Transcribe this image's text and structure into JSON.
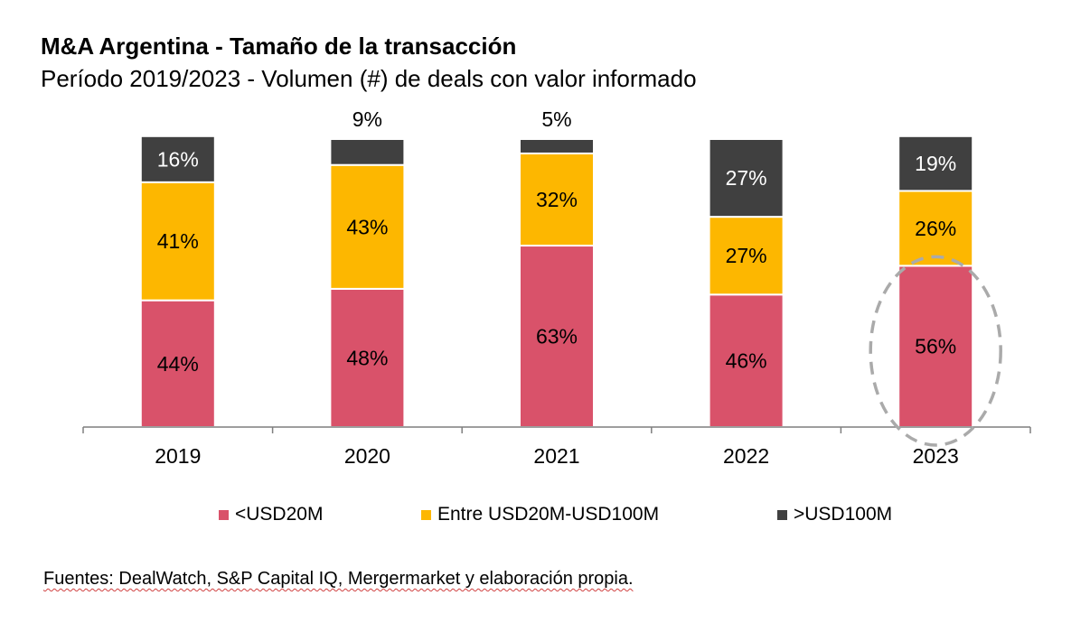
{
  "title": "M&A Argentina - Tamaño de la transacción",
  "subtitle": "Período 2019/2023 - Volumen (#) de deals con valor informado",
  "source": "Fuentes: DealWatch, S&P Capital IQ, Mergermarket y elaboración propia.",
  "chart_data": {
    "type": "bar",
    "stacked": true,
    "categories": [
      "2019",
      "2020",
      "2021",
      "2022",
      "2023"
    ],
    "series": [
      {
        "name": "<USD20M",
        "color": "#d9526a",
        "values": [
          44,
          48,
          63,
          46,
          56
        ],
        "labels": [
          "44%",
          "48%",
          "63%",
          "46%",
          "56%"
        ]
      },
      {
        "name": "Entre USD20M-USD100M",
        "color": "#fdb700",
        "values": [
          41,
          43,
          32,
          27,
          26
        ],
        "labels": [
          "41%",
          "43%",
          "32%",
          "27%",
          "26%"
        ]
      },
      {
        "name": ">USD100M",
        "color": "#404040",
        "values": [
          16,
          9,
          5,
          27,
          19
        ],
        "labels": [
          "16%",
          "9%",
          "5%",
          "27%",
          "19%"
        ]
      }
    ],
    "ylim": [
      0,
      101
    ],
    "legend_position": "bottom",
    "grid": false,
    "highlight": {
      "category": "2023",
      "series": "<USD20M",
      "style": "dashed-ellipse",
      "color": "#aaaaaa"
    }
  }
}
